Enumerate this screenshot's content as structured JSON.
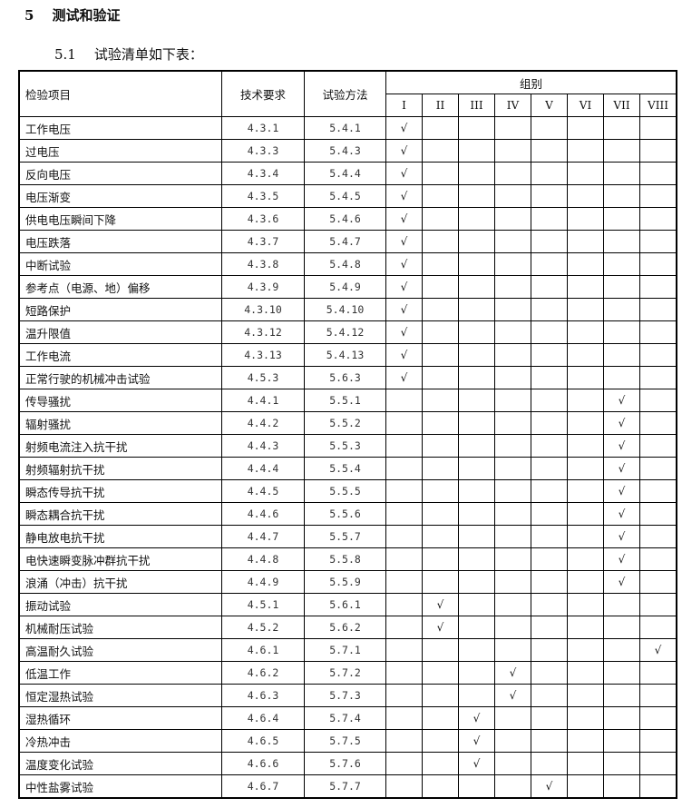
{
  "heading": {
    "number": "5",
    "title": "测试和验证"
  },
  "subheading": {
    "number": "5.1",
    "title": "试验清单如下表："
  },
  "table": {
    "headers": {
      "item": "检验项目",
      "requirement": "技术要求",
      "method": "试验方法",
      "group": "组别"
    },
    "groups": [
      "I",
      "II",
      "III",
      "IV",
      "V",
      "VI",
      "VII",
      "VIII"
    ],
    "check_mark": "√",
    "rows": [
      {
        "item": "工作电压",
        "req": "4.3.1",
        "method": "5.4.1",
        "group": "I"
      },
      {
        "item": "过电压",
        "req": "4.3.3",
        "method": "5.4.3",
        "group": "I"
      },
      {
        "item": "反向电压",
        "req": "4.3.4",
        "method": "5.4.4",
        "group": "I"
      },
      {
        "item": "电压渐变",
        "req": "4.3.5",
        "method": "5.4.5",
        "group": "I"
      },
      {
        "item": "供电电压瞬间下降",
        "req": "4.3.6",
        "method": "5.4.6",
        "group": "I"
      },
      {
        "item": "电压跌落",
        "req": "4.3.7",
        "method": "5.4.7",
        "group": "I"
      },
      {
        "item": "中断试验",
        "req": "4.3.8",
        "method": "5.4.8",
        "group": "I"
      },
      {
        "item": "参考点（电源、地）偏移",
        "req": "4.3.9",
        "method": "5.4.9",
        "group": "I"
      },
      {
        "item": "短路保护",
        "req": "4.3.10",
        "method": "5.4.10",
        "group": "I"
      },
      {
        "item": "温升限值",
        "req": "4.3.12",
        "method": "5.4.12",
        "group": "I"
      },
      {
        "item": "工作电流",
        "req": "4.3.13",
        "method": "5.4.13",
        "group": "I"
      },
      {
        "item": "正常行驶的机械冲击试验",
        "req": "4.5.3",
        "method": "5.6.3",
        "group": "I"
      },
      {
        "item": "传导骚扰",
        "req": "4.4.1",
        "method": "5.5.1",
        "group": "VII"
      },
      {
        "item": "辐射骚扰",
        "req": "4.4.2",
        "method": "5.5.2",
        "group": "VII"
      },
      {
        "item": "射频电流注入抗干扰",
        "req": "4.4.3",
        "method": "5.5.3",
        "group": "VII"
      },
      {
        "item": "射频辐射抗干扰",
        "req": "4.4.4",
        "method": "5.5.4",
        "group": "VII"
      },
      {
        "item": "瞬态传导抗干扰",
        "req": "4.4.5",
        "method": "5.5.5",
        "group": "VII"
      },
      {
        "item": "瞬态耦合抗干扰",
        "req": "4.4.6",
        "method": "5.5.6",
        "group": "VII"
      },
      {
        "item": "静电放电抗干扰",
        "req": "4.4.7",
        "method": "5.5.7",
        "group": "VII"
      },
      {
        "item": "电快速瞬变脉冲群抗干扰",
        "req": "4.4.8",
        "method": "5.5.8",
        "group": "VII"
      },
      {
        "item": "浪涌（冲击）抗干扰",
        "req": "4.4.9",
        "method": "5.5.9",
        "group": "VII"
      },
      {
        "item": "振动试验",
        "req": "4.5.1",
        "method": "5.6.1",
        "group": "II"
      },
      {
        "item": "机械耐压试验",
        "req": "4.5.2",
        "method": "5.6.2",
        "group": "II"
      },
      {
        "item": "高温耐久试验",
        "req": "4.6.1",
        "method": "5.7.1",
        "group": "VIII"
      },
      {
        "item": "低温工作",
        "req": "4.6.2",
        "method": "5.7.2",
        "group": "IV"
      },
      {
        "item": "恒定湿热试验",
        "req": "4.6.3",
        "method": "5.7.3",
        "group": "IV"
      },
      {
        "item": "湿热循环",
        "req": "4.6.4",
        "method": "5.7.4",
        "group": "III"
      },
      {
        "item": "冷热冲击",
        "req": "4.6.5",
        "method": "5.7.5",
        "group": "III"
      },
      {
        "item": "温度变化试验",
        "req": "4.6.6",
        "method": "5.7.6",
        "group": "III"
      },
      {
        "item": "中性盐雾试验",
        "req": "4.6.7",
        "method": "5.7.7",
        "group": "V"
      }
    ]
  }
}
